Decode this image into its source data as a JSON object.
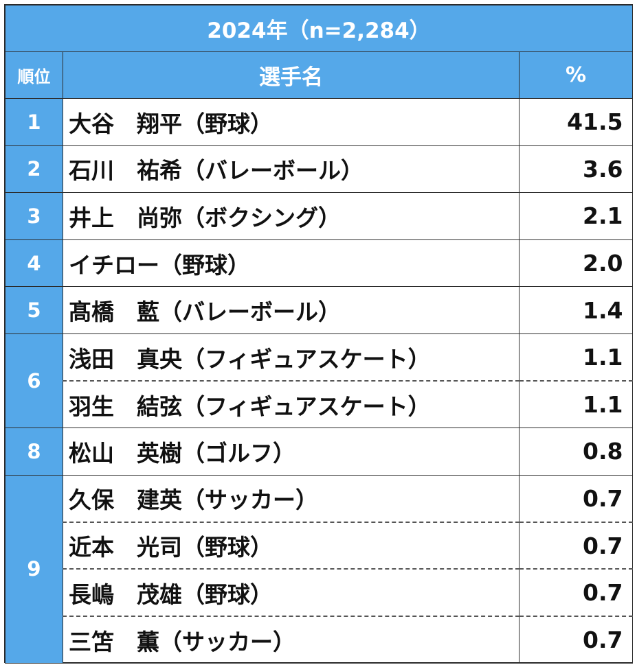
{
  "title": "2024年（n=2,284）",
  "headers": {
    "rank": "順位",
    "name": "選手名",
    "pct": "%"
  },
  "rows": [
    {
      "rank": "1",
      "name": "大谷　翔平（野球）",
      "pct": "41.5"
    },
    {
      "rank": "2",
      "name": "石川　祐希（バレーボール）",
      "pct": "3.6"
    },
    {
      "rank": "3",
      "name": "井上　尚弥（ボクシング）",
      "pct": "2.1"
    },
    {
      "rank": "4",
      "name": "イチロー（野球）",
      "pct": "2.0"
    },
    {
      "rank": "5",
      "name": "髙橋　藍（バレーボール）",
      "pct": "1.4"
    },
    {
      "rank": "6",
      "name": "浅田　真央（フィギュアスケート）",
      "pct": "1.1"
    },
    {
      "rank": "",
      "name": "羽生　結弦（フィギュアスケート）",
      "pct": "1.1"
    },
    {
      "rank": "8",
      "name": "松山　英樹（ゴルフ）",
      "pct": "0.8"
    },
    {
      "rank": "9",
      "name": "久保　建英（サッカー）",
      "pct": "0.7"
    },
    {
      "rank": "",
      "name": "近本　光司（野球）",
      "pct": "0.7"
    },
    {
      "rank": "",
      "name": "長嶋　茂雄（野球）",
      "pct": "0.7"
    },
    {
      "rank": "",
      "name": "三笘　薫（サッカー）",
      "pct": "0.7"
    }
  ],
  "colors": {
    "header_bg": "#55a8e9",
    "header_text": "#ffffff",
    "border": "#2b2b2b"
  }
}
